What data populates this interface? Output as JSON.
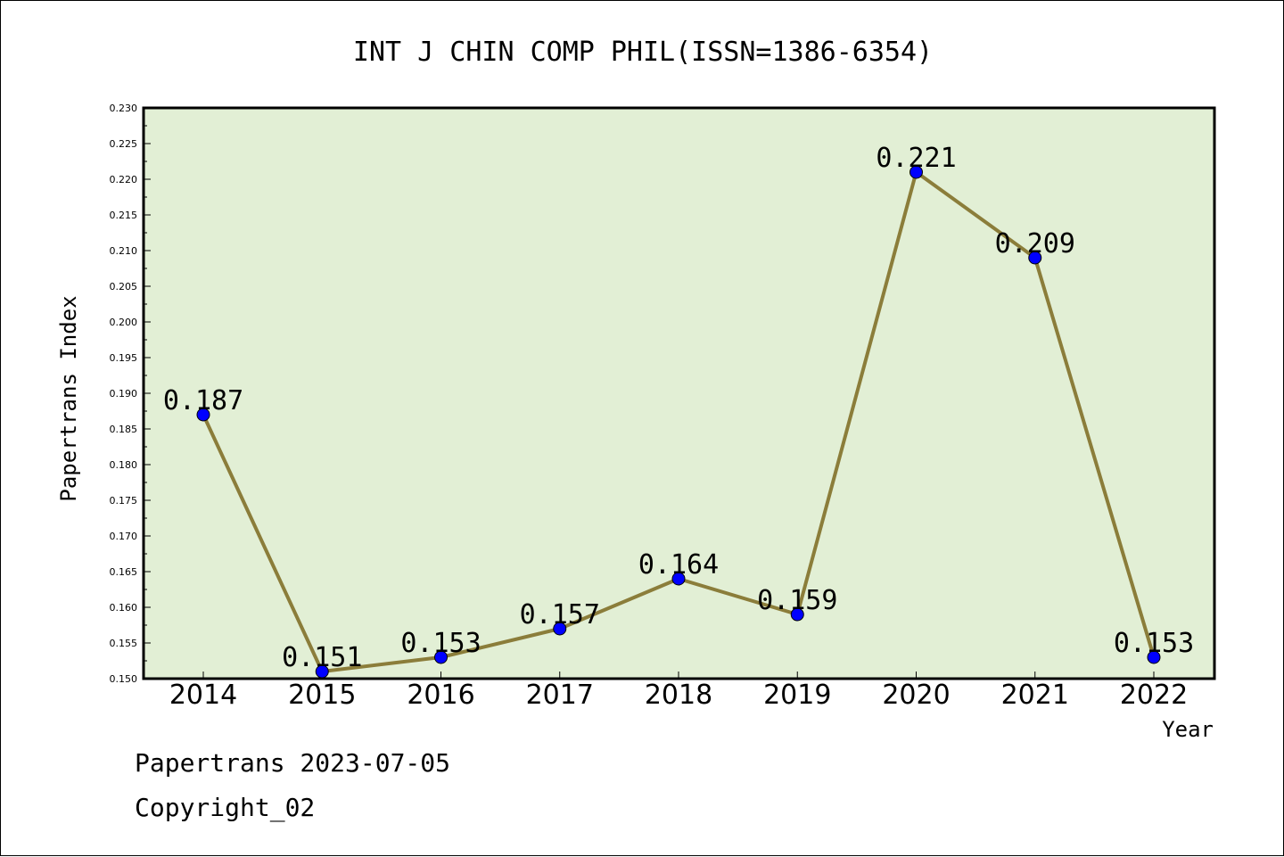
{
  "chart_data": {
    "type": "line",
    "title": "INT J CHIN COMP PHIL(ISSN=1386-6354)",
    "xlabel": "Year",
    "ylabel": "Papertrans Index",
    "categories": [
      "2014",
      "2015",
      "2016",
      "2017",
      "2018",
      "2019",
      "2020",
      "2021",
      "2022"
    ],
    "values": [
      0.187,
      0.151,
      0.153,
      0.157,
      0.164,
      0.159,
      0.221,
      0.209,
      0.153
    ],
    "data_labels": [
      "0.187",
      "0.151",
      "0.153",
      "0.157",
      "0.164",
      "0.159",
      "0.221",
      "0.209",
      "0.153"
    ],
    "ylim": [
      0.15,
      0.23
    ],
    "yticks": [
      "0.150",
      "0.155",
      "0.160",
      "0.165",
      "0.170",
      "0.175",
      "0.180",
      "0.185",
      "0.190",
      "0.195",
      "0.200",
      "0.205",
      "0.210",
      "0.215",
      "0.220",
      "0.225",
      "0.230"
    ],
    "grid": false,
    "legend": "none"
  },
  "colors": {
    "plot_background": "#e2efd5",
    "line": "#8b7d3a",
    "marker": "#0000ff"
  },
  "footer": {
    "source": "Papertrans 2023-07-05",
    "copyright": "Copyright_02"
  }
}
